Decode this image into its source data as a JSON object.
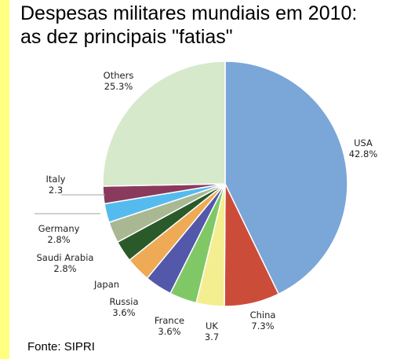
{
  "title_line1": "Despesas militares mundiais em 2010:",
  "title_line2": "as dez principais \"fatias\"",
  "source": "Fonte: SIPRI",
  "chart_data": {
    "type": "pie",
    "slices": [
      {
        "name": "USA",
        "label": "42.8%",
        "value": 42.8,
        "color": "#7aa6d8"
      },
      {
        "name": "China",
        "label": "7.3%",
        "value": 7.3,
        "color": "#cc4c3a"
      },
      {
        "name": "UK",
        "label": "3.7",
        "value": 3.7,
        "color": "#f3ee90"
      },
      {
        "name": "France",
        "label": "3.6%",
        "value": 3.6,
        "color": "#80c866"
      },
      {
        "name": "Russia",
        "label": "3.6%",
        "value": 3.6,
        "color": "#5458aa"
      },
      {
        "name": "Japan",
        "label": "",
        "value": 3.3,
        "color": "#eeaa55"
      },
      {
        "name": "Saudi Arabia",
        "label": "2.8%",
        "value": 2.8,
        "color": "#2a5a2a"
      },
      {
        "name": "Germany",
        "label": "2.8%",
        "value": 2.8,
        "color": "#a9b892"
      },
      {
        "name": "",
        "label": "",
        "value": 2.5,
        "color": "#55bbee"
      },
      {
        "name": "Italy",
        "label": "2.3",
        "value": 2.3,
        "color": "#8a3a5c"
      },
      {
        "name": "Others",
        "label": "25.3%",
        "value": 25.3,
        "color": "#d6e9ca"
      }
    ]
  }
}
